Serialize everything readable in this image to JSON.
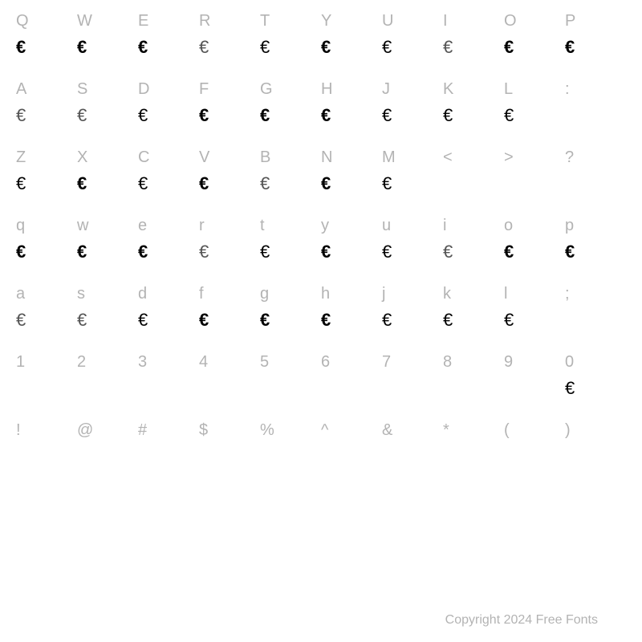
{
  "background_color": "#ffffff",
  "label_color": "#b3b3b3",
  "glyph_color": "#000000",
  "label_fontsize": 20,
  "glyph_fontsize": 22,
  "rows": [
    {
      "labels": [
        "Q",
        "W",
        "E",
        "R",
        "T",
        "Y",
        "U",
        "I",
        "O",
        "P"
      ],
      "glyphs": [
        "€",
        "€",
        "€",
        "€",
        "€",
        "€",
        "€",
        "€",
        "€",
        "€"
      ],
      "weights": [
        "w-bold",
        "w-heavy",
        "w-semi",
        "w-thin",
        "w-reg",
        "w-bold",
        "w-reg",
        "w-thin",
        "w-bold",
        "w-bold"
      ]
    },
    {
      "labels": [
        "A",
        "S",
        "D",
        "F",
        "G",
        "H",
        "J",
        "K",
        "L",
        ":"
      ],
      "glyphs": [
        "€",
        "€",
        "€",
        "€",
        "€",
        "€",
        "€",
        "€",
        "€",
        ""
      ],
      "weights": [
        "w-thin",
        "w-thin",
        "w-reg",
        "w-bold",
        "w-bold",
        "w-bold",
        "w-light",
        "w-light",
        "w-reg",
        ""
      ]
    },
    {
      "labels": [
        "Z",
        "X",
        "C",
        "V",
        "B",
        "N",
        "M",
        "<",
        ">",
        "?"
      ],
      "glyphs": [
        "€",
        "€",
        "€",
        "€",
        "€",
        "€",
        "€",
        "",
        "",
        ""
      ],
      "weights": [
        "w-reg",
        "w-bold",
        "w-light",
        "w-bold",
        "w-thin",
        "w-bold",
        "w-reg",
        "",
        "",
        ""
      ]
    },
    {
      "labels": [
        "q",
        "w",
        "e",
        "r",
        "t",
        "y",
        "u",
        "i",
        "o",
        "p"
      ],
      "glyphs": [
        "€",
        "€",
        "€",
        "€",
        "€",
        "€",
        "€",
        "€",
        "€",
        "€"
      ],
      "weights": [
        "w-bold",
        "w-heavy",
        "w-semi",
        "w-thin",
        "w-reg",
        "w-bold",
        "w-reg",
        "w-thin",
        "w-bold",
        "w-bold"
      ]
    },
    {
      "labels": [
        "a",
        "s",
        "d",
        "f",
        "g",
        "h",
        "j",
        "k",
        "l",
        ";"
      ],
      "glyphs": [
        "€",
        "€",
        "€",
        "€",
        "€",
        "€",
        "€",
        "€",
        "€",
        ""
      ],
      "weights": [
        "w-thin",
        "w-thin",
        "w-reg",
        "w-bold",
        "w-bold",
        "w-bold",
        "w-light",
        "w-light",
        "w-reg",
        ""
      ]
    },
    {
      "labels": [
        "1",
        "2",
        "3",
        "4",
        "5",
        "6",
        "7",
        "8",
        "9",
        "0"
      ],
      "glyphs": [
        "",
        "",
        "",
        "",
        "",
        "",
        "",
        "",
        "",
        "€"
      ],
      "weights": [
        "",
        "",
        "",
        "",
        "",
        "",
        "",
        "",
        "",
        "w-reg"
      ]
    },
    {
      "labels": [
        "!",
        "@",
        "#",
        "$",
        "%",
        "^",
        "&",
        "*",
        "(",
        ")"
      ],
      "glyphs": [
        "",
        "",
        "",
        "",
        "",
        "",
        "",
        "",
        "",
        ""
      ],
      "weights": [
        "",
        "",
        "",
        "",
        "",
        "",
        "",
        "",
        "",
        ""
      ]
    }
  ],
  "footer_text": "Copyright 2024 Free Fonts"
}
